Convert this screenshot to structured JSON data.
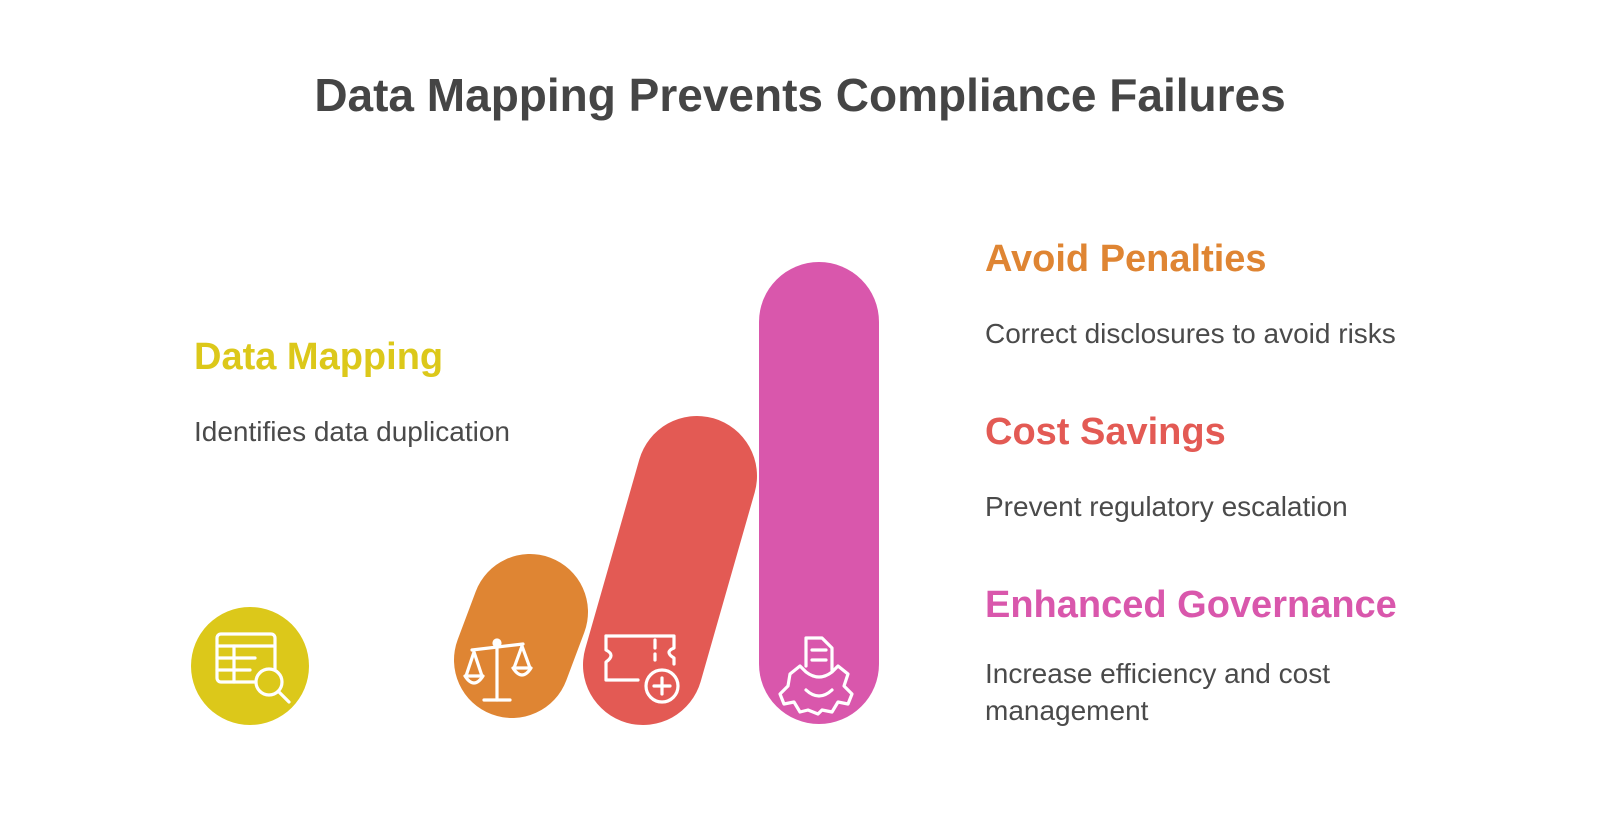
{
  "title": "Data Mapping Prevents Compliance Failures",
  "colors": {
    "data_mapping": "#DCC81A",
    "avoid_penalties": "#DF8533",
    "cost_savings": "#E35A54",
    "enhanced_governance": "#D957AC",
    "title_text": "#454545",
    "body_text": "#4a4a4a"
  },
  "items": {
    "data_mapping": {
      "label": "Data Mapping",
      "description": "Identifies data duplication",
      "icon": "table-search-icon"
    },
    "avoid_penalties": {
      "label": "Avoid Penalties",
      "description": "Correct disclosures to avoid risks",
      "icon": "balance-scale-icon"
    },
    "cost_savings": {
      "label": "Cost Savings",
      "description": "Prevent regulatory escalation",
      "icon": "ticket-plus-icon"
    },
    "enhanced_governance": {
      "label": "Enhanced Governance",
      "description": "Increase efficiency and cost management",
      "icon": "document-gear-icon"
    }
  }
}
